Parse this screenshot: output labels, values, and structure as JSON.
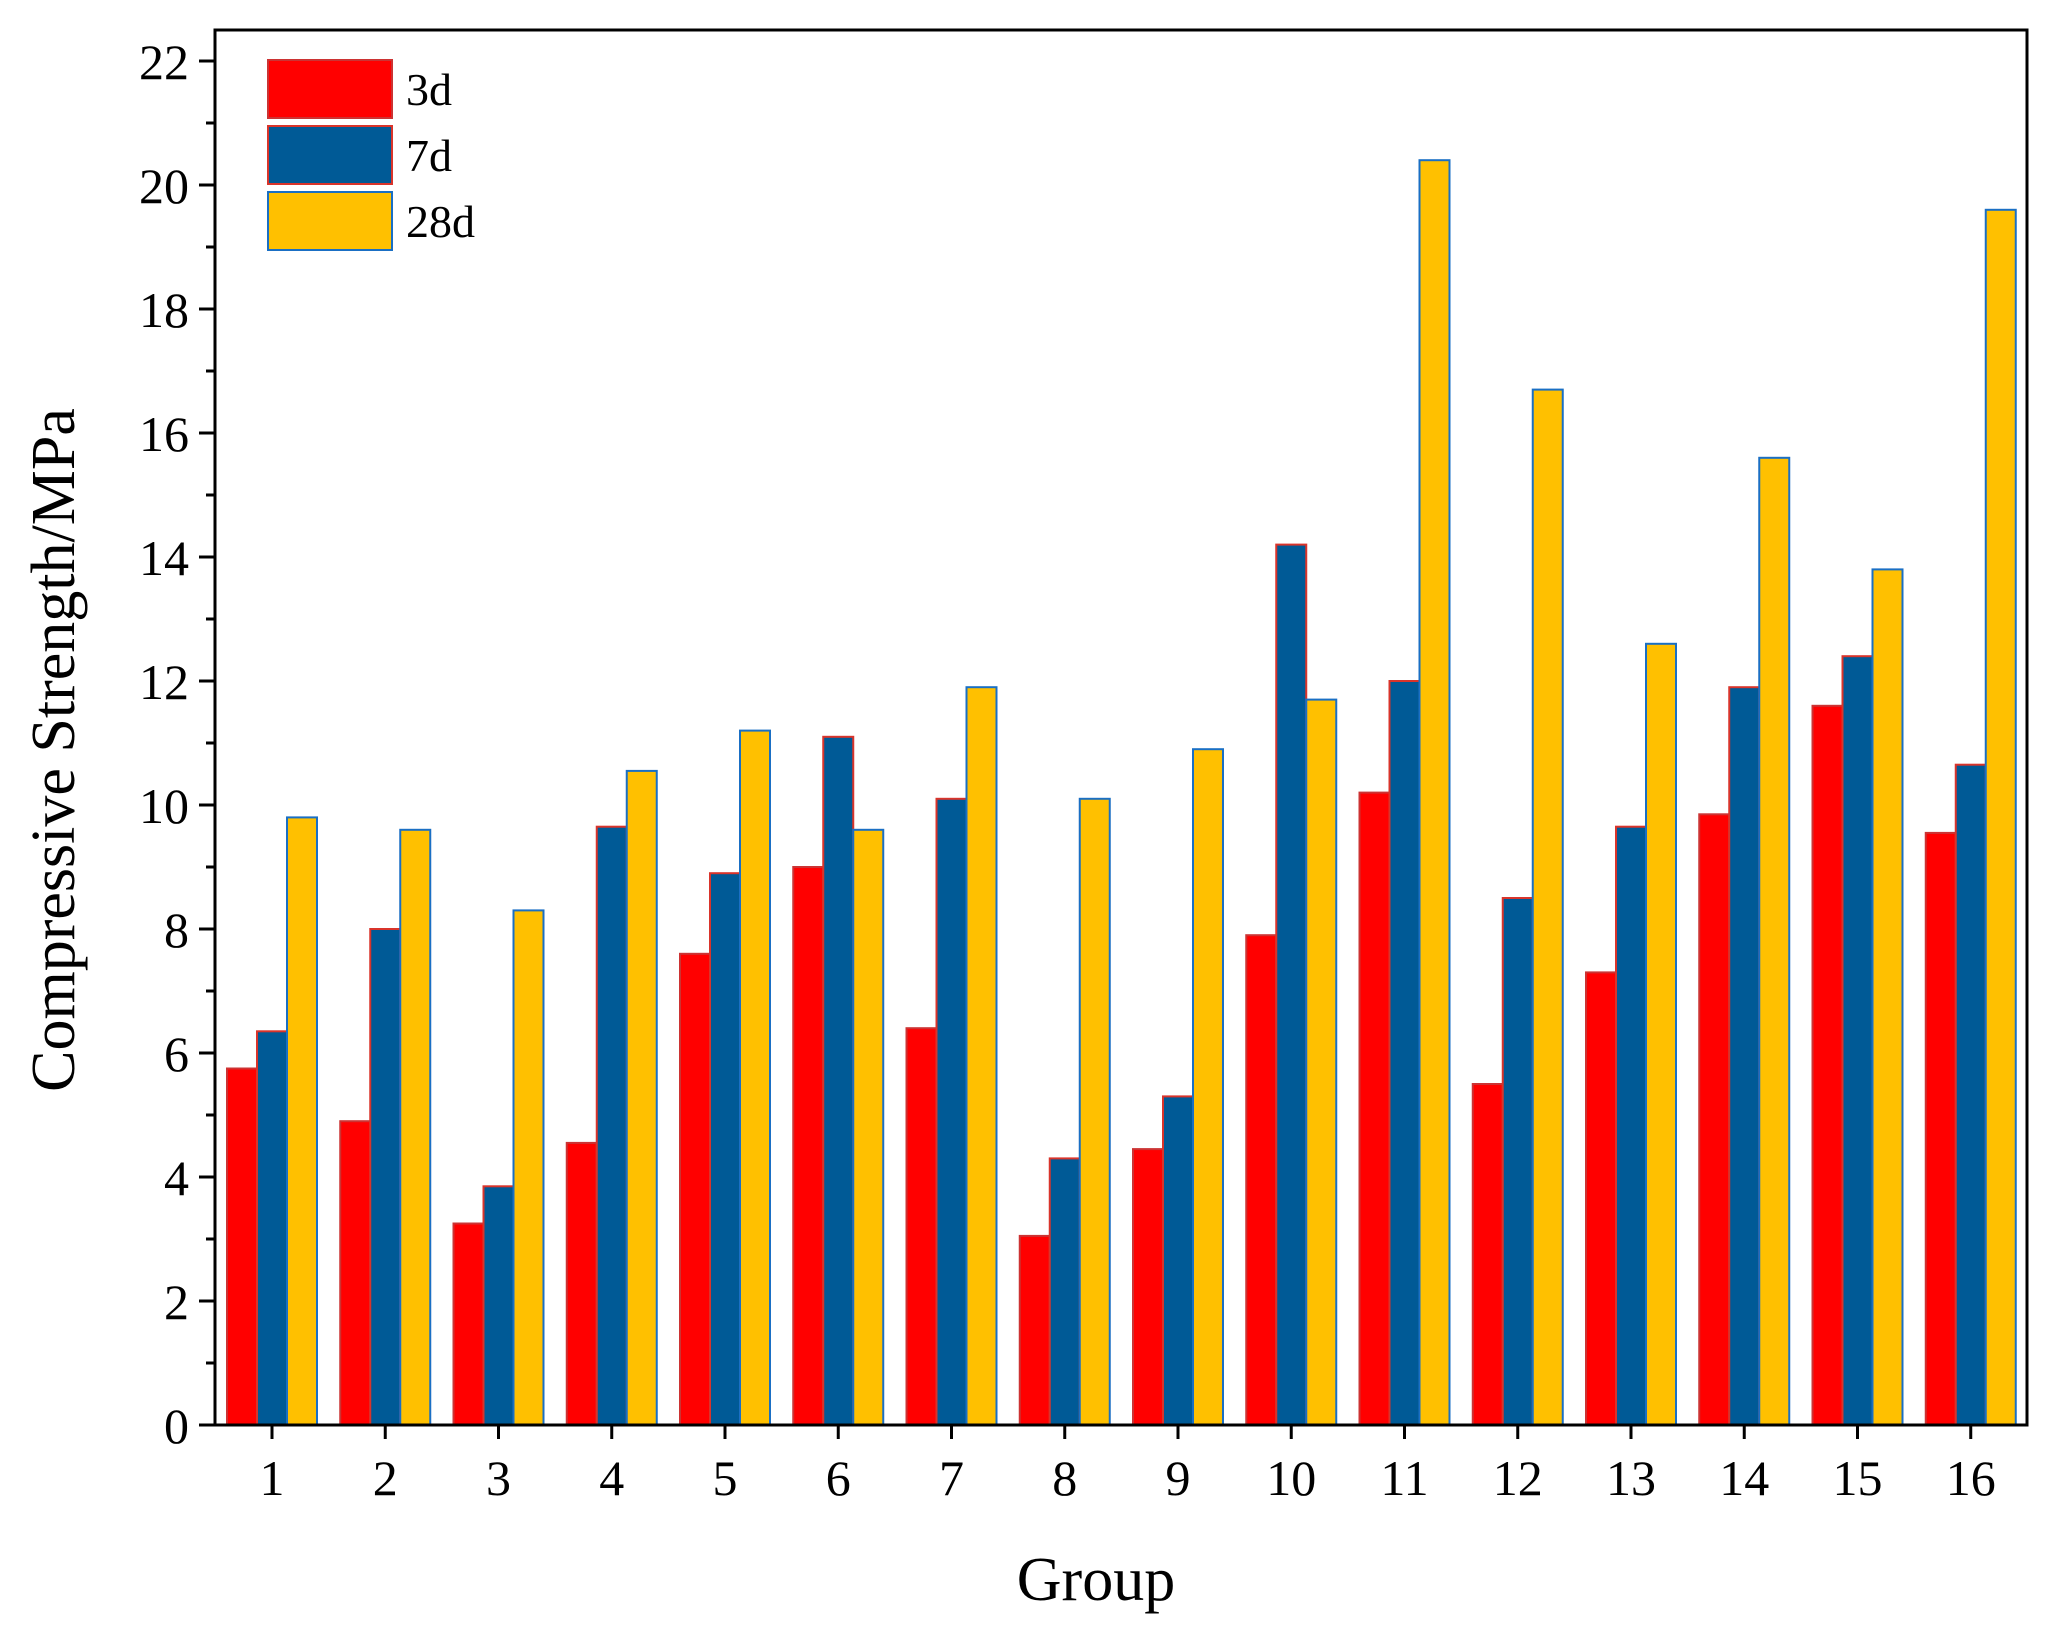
{
  "chart_data": {
    "type": "bar",
    "title": "",
    "xlabel": "Group",
    "ylabel": "Compressive Strength/MPa",
    "ylim": [
      0,
      22.5
    ],
    "yticks": [
      0,
      2,
      4,
      6,
      8,
      10,
      12,
      14,
      16,
      18,
      20,
      22
    ],
    "ytick_labels": [
      "0",
      "2",
      "4",
      "6",
      "8",
      "10",
      "12",
      "14",
      "16",
      "18",
      "20",
      "22"
    ],
    "categories": [
      "1",
      "2",
      "3",
      "4",
      "5",
      "6",
      "7",
      "8",
      "9",
      "10",
      "11",
      "12",
      "13",
      "14",
      "15",
      "16"
    ],
    "grid": false,
    "legend_position": "top-left",
    "series": [
      {
        "name": "3d",
        "color": "#ff0000",
        "edge_color": "#cc3333",
        "values": [
          5.75,
          4.9,
          3.25,
          4.55,
          7.6,
          9.0,
          6.4,
          3.05,
          4.45,
          7.9,
          10.2,
          5.5,
          7.3,
          9.85,
          11.6,
          9.55
        ]
      },
      {
        "name": "7d",
        "color": "#005a96",
        "edge_color": "#d9342b",
        "values": [
          6.35,
          8.0,
          3.85,
          9.65,
          8.9,
          11.1,
          10.1,
          4.3,
          5.3,
          14.2,
          12.0,
          8.5,
          9.65,
          11.9,
          12.4,
          10.65
        ]
      },
      {
        "name": "28d",
        "color": "#ffc000",
        "edge_color": "#1a6fc4",
        "values": [
          9.8,
          9.6,
          8.3,
          10.55,
          11.2,
          9.6,
          11.9,
          10.1,
          10.9,
          11.7,
          20.4,
          16.7,
          12.6,
          15.6,
          13.8,
          19.6
        ]
      }
    ]
  }
}
